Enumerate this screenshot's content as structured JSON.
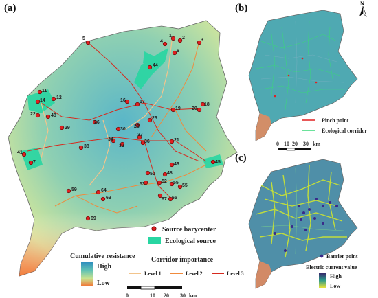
{
  "panels": {
    "a": "(a)",
    "b": "(b)",
    "c": "(c)"
  },
  "north_label": "N",
  "panel_a": {
    "legend": {
      "source_barycenter": "Source barycenter",
      "ecological_source": "Ecological source",
      "cumulative_resistance": "Cumulative resistance",
      "high": "High",
      "low": "Low",
      "corridor_importance": "Corridor importance",
      "level1": "Level 1",
      "level2": "Level 2",
      "level3": "Level 3"
    },
    "scale": {
      "t0": "0",
      "t1": "10",
      "t2": "20",
      "t3": "30",
      "unit": "km"
    },
    "colors": {
      "level1": "#f2c48c",
      "level2": "#f08a3c",
      "level3": "#d62a1e",
      "source_barycenter": "#e02020",
      "ecological_source": "#28d6a2"
    },
    "nodes": [
      "1",
      "2",
      "3",
      "4",
      "5",
      "6",
      "7",
      "11",
      "12",
      "14",
      "16",
      "17",
      "18",
      "19",
      "20",
      "21",
      "22",
      "23",
      "26",
      "28",
      "29",
      "30",
      "32",
      "34",
      "36",
      "37",
      "38",
      "41",
      "44",
      "45",
      "46",
      "47",
      "48",
      "49",
      "50",
      "51",
      "52",
      "53",
      "54",
      "55",
      "59",
      "63",
      "64",
      "65",
      "67",
      "69"
    ]
  },
  "panel_b": {
    "legend": {
      "pinch_point": "Pinch point",
      "ecological_corridor": "Ecological corridor"
    },
    "scale": {
      "t0": "0",
      "t1": "10",
      "t2": "20",
      "t3": "30",
      "unit": "km"
    }
  },
  "panel_c": {
    "legend": {
      "barrier_point": "Barrier point",
      "electric_current_value": "Electric current value",
      "high": "High",
      "low": "Low"
    }
  }
}
